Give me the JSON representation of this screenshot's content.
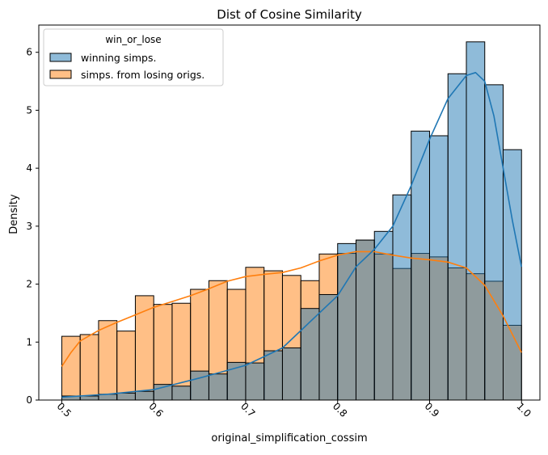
{
  "chart_data": {
    "type": "bar",
    "title": "Dist of Cosine Similarity",
    "xlabel": "original_simplification_cossim",
    "ylabel": "Density",
    "xlim": [
      0.475,
      1.02
    ],
    "ylim": [
      0,
      6.47
    ],
    "xticks": [
      0.5,
      0.6,
      0.7,
      0.8,
      0.9,
      1.0
    ],
    "xtick_labels": [
      "0.5",
      "0.6",
      "0.7",
      "0.8",
      "0.9",
      "1.0"
    ],
    "yticks": [
      0,
      1,
      2,
      3,
      4,
      5,
      6
    ],
    "ytick_labels": [
      "0",
      "1",
      "2",
      "3",
      "4",
      "5",
      "6"
    ],
    "grid": false,
    "bin_edges": [
      0.5,
      0.52,
      0.54,
      0.56,
      0.58,
      0.6,
      0.62,
      0.64,
      0.66,
      0.68,
      0.7,
      0.72,
      0.74,
      0.76,
      0.78,
      0.8,
      0.82,
      0.84,
      0.86,
      0.88,
      0.9,
      0.92,
      0.94,
      0.96,
      0.98,
      1.0
    ],
    "legend": {
      "title": "win_or_lose",
      "position": "top-left"
    },
    "series": [
      {
        "name": "winning simps.",
        "color": "#1f77b4",
        "values": [
          0.07,
          0.07,
          0.1,
          0.12,
          0.15,
          0.27,
          0.24,
          0.5,
          0.45,
          0.65,
          0.64,
          0.85,
          0.9,
          1.58,
          1.82,
          2.7,
          2.76,
          2.91,
          3.54,
          4.64,
          4.56,
          5.63,
          6.18,
          5.44,
          4.32
        ],
        "kde": [
          [
            0.5,
            0.05
          ],
          [
            0.55,
            0.1
          ],
          [
            0.6,
            0.18
          ],
          [
            0.65,
            0.38
          ],
          [
            0.7,
            0.6
          ],
          [
            0.74,
            0.9
          ],
          [
            0.78,
            1.5
          ],
          [
            0.8,
            1.8
          ],
          [
            0.82,
            2.3
          ],
          [
            0.84,
            2.6
          ],
          [
            0.86,
            3.0
          ],
          [
            0.88,
            3.7
          ],
          [
            0.9,
            4.5
          ],
          [
            0.92,
            5.2
          ],
          [
            0.94,
            5.6
          ],
          [
            0.95,
            5.65
          ],
          [
            0.96,
            5.5
          ],
          [
            0.97,
            4.9
          ],
          [
            0.98,
            4.0
          ],
          [
            0.99,
            3.1
          ],
          [
            1.0,
            2.3
          ]
        ]
      },
      {
        "name": "simps. from losing origs.",
        "color": "#ff7f0e",
        "values": [
          1.1,
          1.13,
          1.37,
          1.19,
          1.8,
          1.65,
          1.67,
          1.91,
          2.06,
          1.91,
          2.29,
          2.23,
          2.15,
          2.06,
          2.52,
          2.53,
          2.76,
          2.52,
          2.27,
          2.53,
          2.47,
          2.28,
          2.18,
          2.05,
          1.29
        ],
        "kde": [
          [
            0.5,
            0.58
          ],
          [
            0.51,
            0.82
          ],
          [
            0.52,
            1.02
          ],
          [
            0.54,
            1.2
          ],
          [
            0.56,
            1.34
          ],
          [
            0.58,
            1.47
          ],
          [
            0.6,
            1.6
          ],
          [
            0.62,
            1.7
          ],
          [
            0.64,
            1.8
          ],
          [
            0.66,
            1.92
          ],
          [
            0.68,
            2.05
          ],
          [
            0.7,
            2.13
          ],
          [
            0.72,
            2.17
          ],
          [
            0.74,
            2.2
          ],
          [
            0.76,
            2.28
          ],
          [
            0.78,
            2.4
          ],
          [
            0.8,
            2.5
          ],
          [
            0.82,
            2.56
          ],
          [
            0.84,
            2.56
          ],
          [
            0.86,
            2.5
          ],
          [
            0.88,
            2.45
          ],
          [
            0.9,
            2.42
          ],
          [
            0.92,
            2.38
          ],
          [
            0.94,
            2.28
          ],
          [
            0.96,
            1.98
          ],
          [
            0.98,
            1.45
          ],
          [
            1.0,
            0.82
          ]
        ]
      }
    ]
  }
}
